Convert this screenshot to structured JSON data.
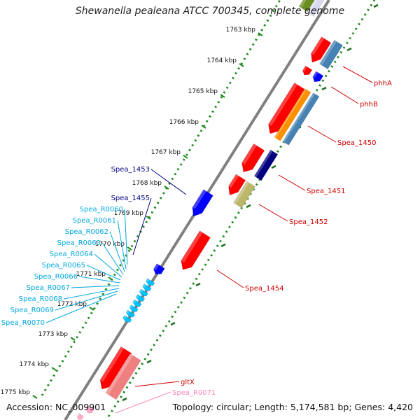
{
  "title": "Shewanella pealeana ATCC 700345, complete genome",
  "footer": {
    "accession_label": "Accession:",
    "accession": "NC_009901",
    "topology_label": "Topology:",
    "topology": "circular",
    "length_label": "Length:",
    "length": "5,174,581 bp",
    "genes_label": "Genes:",
    "genes": "4,420"
  },
  "kbp_ticks": [
    "1763 kbp",
    "1764 kbp",
    "1765 kbp",
    "1766 kbp",
    "1767 kbp",
    "1768 kbp",
    "1769 kbp",
    "1770 kbp",
    "1771 kbp",
    "1772 kbp",
    "1773 kbp",
    "1774 kbp",
    "1775 kbp"
  ],
  "right_labels": [
    "phhA",
    "phhB",
    "Spea_1450",
    "Spea_1451",
    "Spea_1452",
    "Spea_1454",
    "gltX",
    "Spea_R0071"
  ],
  "left_labels": [
    "Spea_1453",
    "Spea_1455",
    "Spea_R0060",
    "Spea_R0061",
    "Spea_R0062",
    "Spea_R0063",
    "Spea_R0064",
    "Spea_R0065",
    "Spea_R0066",
    "Spea_R0067",
    "Spea_R0068",
    "Spea_R0069",
    "Spea_R0070"
  ],
  "colors": {
    "red": "#ff0000",
    "blue": "#0000ff",
    "navy": "#000080",
    "steelblue": "#4682b4",
    "orange": "#ff9000",
    "khaki": "#bdb76b",
    "salmon": "#f08080",
    "cyan": "#00c0ff",
    "pink": "#ffaacc",
    "olive": "#6b8e23",
    "ring": "#808080",
    "dots": "#228b22"
  }
}
